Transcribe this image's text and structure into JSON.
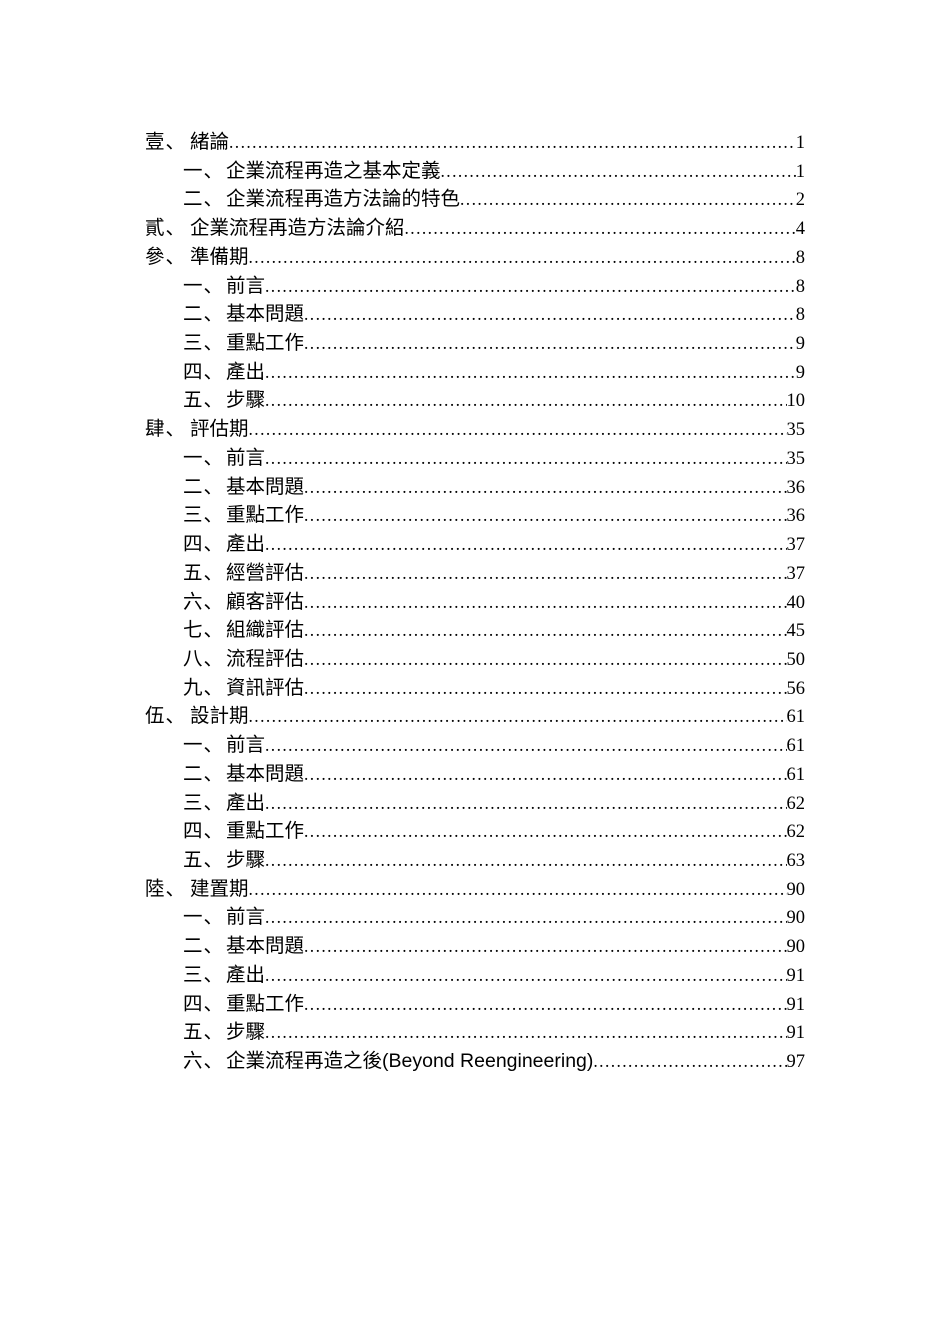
{
  "document": {
    "type": "table-of-contents",
    "text_color": "#000000",
    "background_color": "#ffffff",
    "entries": [
      {
        "level": 1,
        "label": "壹、",
        "title": "緒論",
        "page": "1"
      },
      {
        "level": 2,
        "label": "一、",
        "title": "企業流程再造之基本定義",
        "page": "1"
      },
      {
        "level": 2,
        "label": "二、",
        "title": "企業流程再造方法論的特色",
        "page": "2"
      },
      {
        "level": 1,
        "label": "貳、",
        "title": "企業流程再造方法論介紹",
        "page": "4"
      },
      {
        "level": 1,
        "label": "參、",
        "title": "準備期",
        "page": "8"
      },
      {
        "level": 2,
        "label": "一、",
        "title": "前言",
        "page": "8"
      },
      {
        "level": 2,
        "label": "二、",
        "title": "基本問題",
        "page": "8"
      },
      {
        "level": 2,
        "label": "三、",
        "title": "重點工作",
        "page": "9"
      },
      {
        "level": 2,
        "label": "四、",
        "title": "產出",
        "page": "9"
      },
      {
        "level": 2,
        "label": "五、",
        "title": "步驟",
        "page": "10"
      },
      {
        "level": 1,
        "label": "肆、",
        "title": "評估期",
        "page": "35"
      },
      {
        "level": 2,
        "label": "一、",
        "title": "前言",
        "page": "35"
      },
      {
        "level": 2,
        "label": "二、",
        "title": "基本問題",
        "page": "36"
      },
      {
        "level": 2,
        "label": "三、",
        "title": "重點工作",
        "page": "36"
      },
      {
        "level": 2,
        "label": "四、",
        "title": "產出",
        "page": "37"
      },
      {
        "level": 2,
        "label": "五、",
        "title": "經營評估",
        "page": "37"
      },
      {
        "level": 2,
        "label": "六、",
        "title": "顧客評估",
        "page": "40"
      },
      {
        "level": 2,
        "label": "七、",
        "title": "組織評估",
        "page": "45"
      },
      {
        "level": 2,
        "label": "八、",
        "title": "流程評估",
        "page": "50"
      },
      {
        "level": 2,
        "label": "九、",
        "title": "資訊評估",
        "page": "56"
      },
      {
        "level": 1,
        "label": "伍、",
        "title": "設計期",
        "page": "61"
      },
      {
        "level": 2,
        "label": "一、",
        "title": "前言",
        "page": "61"
      },
      {
        "level": 2,
        "label": "二、",
        "title": "基本問題",
        "page": "61"
      },
      {
        "level": 2,
        "label": "三、",
        "title": "產出",
        "page": "62"
      },
      {
        "level": 2,
        "label": "四、",
        "title": "重點工作",
        "page": "62"
      },
      {
        "level": 2,
        "label": "五、",
        "title": "步驟",
        "page": "63"
      },
      {
        "level": 1,
        "label": "陸、",
        "title": "建置期",
        "page": "90"
      },
      {
        "level": 2,
        "label": "一、",
        "title": "前言",
        "page": "90"
      },
      {
        "level": 2,
        "label": "二、",
        "title": "基本問題",
        "page": "90"
      },
      {
        "level": 2,
        "label": "三、",
        "title": "產出",
        "page": "91"
      },
      {
        "level": 2,
        "label": "四、",
        "title": "重點工作",
        "page": "91"
      },
      {
        "level": 2,
        "label": "五、",
        "title": "步驟",
        "page": "91"
      },
      {
        "level": 2,
        "label": "六、",
        "title": "企業流程再造之後(Beyond Reengineering)",
        "page": "97"
      }
    ]
  }
}
